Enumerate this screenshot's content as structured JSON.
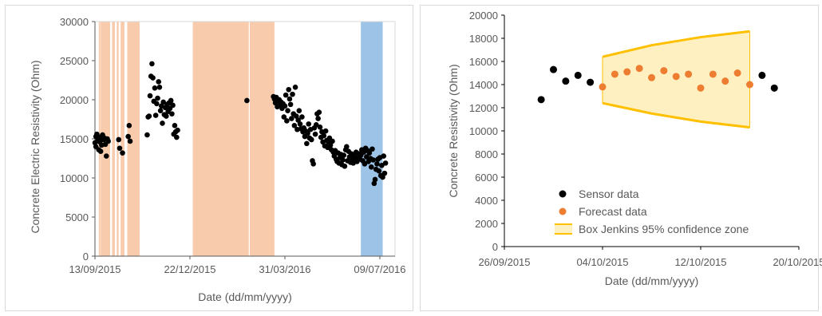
{
  "chart_data": [
    {
      "type": "scatter",
      "xlabel": "Date (dd/mm/yyyy)",
      "ylabel": "Concrete Electric Resistivity (Ohm)",
      "ylim": [
        0,
        30000
      ],
      "yticks": [
        0,
        5000,
        10000,
        15000,
        20000,
        25000,
        30000
      ],
      "xlim": [
        "2015-09-13",
        "2016-07-25"
      ],
      "xticks": [
        "13/09/2015",
        "22/12/2015",
        "31/03/2016",
        "09/07/2016"
      ],
      "grid": false,
      "colors": {
        "points": "#000000",
        "orange_band": "#f8cbad",
        "blue_band": "#9dc3e6",
        "axis": "#595959"
      },
      "orange_bands": [
        [
          "2015-09-17",
          "2015-09-17"
        ],
        [
          "2015-09-19",
          "2015-09-29"
        ],
        [
          "2015-10-01",
          "2015-10-04"
        ],
        [
          "2015-10-06",
          "2015-10-08"
        ],
        [
          "2015-10-10",
          "2015-10-14"
        ],
        [
          "2015-10-17",
          "2015-10-30"
        ],
        [
          "2015-12-25",
          "2016-02-22"
        ],
        [
          "2016-02-23",
          "2016-03-20"
        ]
      ],
      "blue_bands": [
        [
          "2016-06-19",
          "2016-07-12"
        ]
      ],
      "points": [
        [
          "2015-09-13",
          14500
        ],
        [
          "2015-09-14",
          15300
        ],
        [
          "2015-09-14",
          14000
        ],
        [
          "2015-09-15",
          15600
        ],
        [
          "2015-09-16",
          14800
        ],
        [
          "2015-09-17",
          13600
        ],
        [
          "2015-09-18",
          15200
        ],
        [
          "2015-09-18",
          14600
        ],
        [
          "2015-09-19",
          13400
        ],
        [
          "2015-09-20",
          14200
        ],
        [
          "2015-09-21",
          15500
        ],
        [
          "2015-09-22",
          14900
        ],
        [
          "2015-09-23",
          15100
        ],
        [
          "2015-09-24",
          14300
        ],
        [
          "2015-09-25",
          12800
        ],
        [
          "2015-09-26",
          15000
        ],
        [
          "2015-09-27",
          14700
        ],
        [
          "2015-10-08",
          14900
        ],
        [
          "2015-10-09",
          13800
        ],
        [
          "2015-10-12",
          13200
        ],
        [
          "2015-10-18",
          15300
        ],
        [
          "2015-10-19",
          16700
        ],
        [
          "2015-10-20",
          14700
        ],
        [
          "2015-11-07",
          15500
        ],
        [
          "2015-11-08",
          17800
        ],
        [
          "2015-11-09",
          17900
        ],
        [
          "2015-11-10",
          20500
        ],
        [
          "2015-11-11",
          23000
        ],
        [
          "2015-11-12",
          24600
        ],
        [
          "2015-11-13",
          22800
        ],
        [
          "2015-11-14",
          19800
        ],
        [
          "2015-11-15",
          21500
        ],
        [
          "2015-11-16",
          18000
        ],
        [
          "2015-11-17",
          19500
        ],
        [
          "2015-11-18",
          20200
        ],
        [
          "2015-11-19",
          22300
        ],
        [
          "2015-11-20",
          21600
        ],
        [
          "2015-11-21",
          18600
        ],
        [
          "2015-11-22",
          19200
        ],
        [
          "2015-11-23",
          17000
        ],
        [
          "2015-11-24",
          19700
        ],
        [
          "2015-11-25",
          18100
        ],
        [
          "2015-11-26",
          19000
        ],
        [
          "2015-11-27",
          17900
        ],
        [
          "2015-11-28",
          19400
        ],
        [
          "2015-11-29",
          18500
        ],
        [
          "2015-11-30",
          19600
        ],
        [
          "2015-12-01",
          18900
        ],
        [
          "2015-12-02",
          19900
        ],
        [
          "2015-12-03",
          18200
        ],
        [
          "2015-12-04",
          19300
        ],
        [
          "2015-12-05",
          15600
        ],
        [
          "2015-12-06",
          16700
        ],
        [
          "2015-12-07",
          15900
        ],
        [
          "2015-12-08",
          15200
        ],
        [
          "2015-12-09",
          16100
        ],
        [
          "2016-02-20",
          19900
        ],
        [
          "2016-03-19",
          20400
        ],
        [
          "2016-03-20",
          20100
        ],
        [
          "2016-03-21",
          19600
        ],
        [
          "2016-03-22",
          20300
        ],
        [
          "2016-03-23",
          19100
        ],
        [
          "2016-03-24",
          19800
        ],
        [
          "2016-03-25",
          20000
        ],
        [
          "2016-03-26",
          19300
        ],
        [
          "2016-03-27",
          19700
        ],
        [
          "2016-03-28",
          18900
        ],
        [
          "2016-03-29",
          19500
        ],
        [
          "2016-03-30",
          17800
        ],
        [
          "2016-03-31",
          19200
        ],
        [
          "2016-04-01",
          20600
        ],
        [
          "2016-04-02",
          17300
        ],
        [
          "2016-04-03",
          18600
        ],
        [
          "2016-04-04",
          21300
        ],
        [
          "2016-04-05",
          20100
        ],
        [
          "2016-04-06",
          19400
        ],
        [
          "2016-04-07",
          17600
        ],
        [
          "2016-04-08",
          20700
        ],
        [
          "2016-04-09",
          18200
        ],
        [
          "2016-04-10",
          16700
        ],
        [
          "2016-04-11",
          21600
        ],
        [
          "2016-04-12",
          17900
        ],
        [
          "2016-04-13",
          16200
        ],
        [
          "2016-04-14",
          17400
        ],
        [
          "2016-04-15",
          18600
        ],
        [
          "2016-04-16",
          16900
        ],
        [
          "2016-04-17",
          16300
        ],
        [
          "2016-04-18",
          17800
        ],
        [
          "2016-04-19",
          15900
        ],
        [
          "2016-04-20",
          16400
        ],
        [
          "2016-04-21",
          15300
        ],
        [
          "2016-04-22",
          16000
        ],
        [
          "2016-04-23",
          14400
        ],
        [
          "2016-04-24",
          15700
        ],
        [
          "2016-04-25",
          16900
        ],
        [
          "2016-04-26",
          15100
        ],
        [
          "2016-04-27",
          16200
        ],
        [
          "2016-04-28",
          14900
        ],
        [
          "2016-04-29",
          12200
        ],
        [
          "2016-04-30",
          11800
        ],
        [
          "2016-05-01",
          16400
        ],
        [
          "2016-05-02",
          15600
        ],
        [
          "2016-05-03",
          16800
        ],
        [
          "2016-05-04",
          18200
        ],
        [
          "2016-05-05",
          17600
        ],
        [
          "2016-05-06",
          18400
        ],
        [
          "2016-05-07",
          16500
        ],
        [
          "2016-05-08",
          15200
        ],
        [
          "2016-05-09",
          15900
        ],
        [
          "2016-05-10",
          14600
        ],
        [
          "2016-05-11",
          15400
        ],
        [
          "2016-05-12",
          14100
        ],
        [
          "2016-05-13",
          16000
        ],
        [
          "2016-05-14",
          14800
        ],
        [
          "2016-05-15",
          13900
        ],
        [
          "2016-05-16",
          14500
        ],
        [
          "2016-05-17",
          15100
        ],
        [
          "2016-05-18",
          14200
        ],
        [
          "2016-05-19",
          13600
        ],
        [
          "2016-05-20",
          14700
        ],
        [
          "2016-05-21",
          13300
        ],
        [
          "2016-05-22",
          12800
        ],
        [
          "2016-05-23",
          13500
        ],
        [
          "2016-05-24",
          12400
        ],
        [
          "2016-05-25",
          12100
        ],
        [
          "2016-05-26",
          13200
        ],
        [
          "2016-05-27",
          11900
        ],
        [
          "2016-05-28",
          12600
        ],
        [
          "2016-05-29",
          13000
        ],
        [
          "2016-05-30",
          11700
        ],
        [
          "2016-05-31",
          12300
        ],
        [
          "2016-06-01",
          12900
        ],
        [
          "2016-06-02",
          11500
        ],
        [
          "2016-06-03",
          13600
        ],
        [
          "2016-06-04",
          14000
        ],
        [
          "2016-06-05",
          12200
        ],
        [
          "2016-06-06",
          13400
        ],
        [
          "2016-06-07",
          12700
        ],
        [
          "2016-06-08",
          12000
        ],
        [
          "2016-06-09",
          13100
        ],
        [
          "2016-06-10",
          12500
        ],
        [
          "2016-06-11",
          11900
        ],
        [
          "2016-06-12",
          12800
        ],
        [
          "2016-06-13",
          12300
        ],
        [
          "2016-06-14",
          13300
        ],
        [
          "2016-06-15",
          12100
        ],
        [
          "2016-06-16",
          12600
        ],
        [
          "2016-06-17",
          13100
        ],
        [
          "2016-06-18",
          12400
        ],
        [
          "2016-06-19",
          12900
        ],
        [
          "2016-06-20",
          13600
        ],
        [
          "2016-06-21",
          12200
        ],
        [
          "2016-06-22",
          13300
        ],
        [
          "2016-06-23",
          11800
        ],
        [
          "2016-06-24",
          13800
        ],
        [
          "2016-06-25",
          12700
        ],
        [
          "2016-06-26",
          13500
        ],
        [
          "2016-06-27",
          12100
        ],
        [
          "2016-06-28",
          13200
        ],
        [
          "2016-06-29",
          12500
        ],
        [
          "2016-06-30",
          11400
        ],
        [
          "2016-07-01",
          13700
        ],
        [
          "2016-07-02",
          12300
        ],
        [
          "2016-07-03",
          9300
        ],
        [
          "2016-07-04",
          9800
        ],
        [
          "2016-07-05",
          11100
        ],
        [
          "2016-07-06",
          11800
        ],
        [
          "2016-07-07",
          12400
        ],
        [
          "2016-07-08",
          10900
        ],
        [
          "2016-07-09",
          12600
        ],
        [
          "2016-07-10",
          10300
        ],
        [
          "2016-07-11",
          11600
        ],
        [
          "2016-07-12",
          10100
        ],
        [
          "2016-07-13",
          12800
        ],
        [
          "2016-07-14",
          10600
        ],
        [
          "2016-07-15",
          11900
        ]
      ]
    },
    {
      "type": "scatter",
      "xlabel": "Date (dd/mm/yyyy)",
      "ylabel": "Concrete Resistivity (Ohm)",
      "ylim": [
        0,
        20000
      ],
      "yticks": [
        0,
        2000,
        4000,
        6000,
        8000,
        10000,
        12000,
        14000,
        16000,
        18000,
        20000
      ],
      "xlim": [
        "2015-09-26",
        "2015-10-20"
      ],
      "xticks": [
        "26/09/2015",
        "04/10/2015",
        "12/10/2015",
        "20/10/2015"
      ],
      "grid": false,
      "legend_position": "bottom-left",
      "colors": {
        "sensor": "#000000",
        "forecast": "#ed7d31",
        "zone_fill": "#ffe699",
        "zone_line": "#ffc000",
        "axis": "#595959"
      },
      "series": [
        {
          "name": "Sensor data",
          "points": [
            [
              "2015-09-29",
              12700
            ],
            [
              "2015-09-30",
              15300
            ],
            [
              "2015-10-01",
              14300
            ],
            [
              "2015-10-02",
              14800
            ],
            [
              "2015-10-03",
              14200
            ],
            [
              "2015-10-17",
              14800
            ],
            [
              "2015-10-18",
              13700
            ]
          ]
        },
        {
          "name": "Forecast data",
          "points": [
            [
              "2015-10-04",
              13800
            ],
            [
              "2015-10-05",
              14900
            ],
            [
              "2015-10-06",
              15100
            ],
            [
              "2015-10-07",
              15400
            ],
            [
              "2015-10-08",
              14600
            ],
            [
              "2015-10-09",
              15200
            ],
            [
              "2015-10-10",
              14700
            ],
            [
              "2015-10-11",
              14900
            ],
            [
              "2015-10-12",
              13700
            ],
            [
              "2015-10-13",
              14900
            ],
            [
              "2015-10-14",
              14300
            ],
            [
              "2015-10-15",
              15000
            ],
            [
              "2015-10-16",
              14000
            ]
          ]
        },
        {
          "name": "Box Jenkins 95% confidence zone",
          "x": [
            "2015-10-04",
            "2015-10-08",
            "2015-10-12",
            "2015-10-16"
          ],
          "upper": [
            16400,
            17400,
            18100,
            18600
          ],
          "lower": [
            12400,
            11500,
            10800,
            10300
          ]
        }
      ]
    }
  ]
}
